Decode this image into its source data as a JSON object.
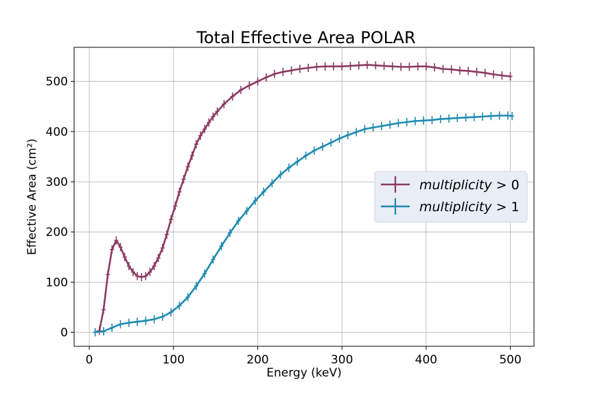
{
  "chart_data": {
    "type": "line",
    "title": "Total Effective Area POLAR",
    "xlabel": "Energy (keV)",
    "ylabel": "Effective Area (cm²)",
    "xlim": [
      -18,
      528
    ],
    "ylim": [
      -28,
      568
    ],
    "xticks": [
      0,
      100,
      200,
      300,
      400,
      500
    ],
    "yticks": [
      0,
      100,
      200,
      300,
      400,
      500
    ],
    "grid": true,
    "legend": {
      "position": "center-right"
    },
    "series": [
      {
        "name": "multiplicity > 0",
        "label_italic": "multiplicity",
        "label_rest": " > 0",
        "color": "#8b3a62",
        "x": [
          7,
          12,
          17,
          22,
          27,
          32,
          37,
          42,
          47,
          52,
          57,
          62,
          67,
          72,
          77,
          82,
          87,
          92,
          97,
          102,
          107,
          112,
          117,
          122,
          127,
          132,
          137,
          142,
          147,
          152,
          160,
          170,
          180,
          190,
          200,
          210,
          220,
          230,
          240,
          250,
          260,
          270,
          280,
          290,
          300,
          310,
          320,
          330,
          340,
          350,
          360,
          370,
          380,
          390,
          400,
          410,
          420,
          430,
          440,
          450,
          460,
          470,
          480,
          490,
          500
        ],
        "y": [
          0,
          3,
          45,
          115,
          165,
          183,
          170,
          150,
          132,
          120,
          112,
          110,
          112,
          120,
          132,
          148,
          168,
          195,
          225,
          252,
          280,
          305,
          330,
          352,
          375,
          392,
          405,
          418,
          430,
          440,
          455,
          470,
          483,
          492,
          500,
          508,
          515,
          519,
          522,
          525,
          527,
          529,
          530,
          530,
          530,
          531,
          532,
          533,
          532,
          531,
          530,
          529,
          529,
          530,
          530,
          528,
          525,
          524,
          522,
          521,
          519,
          517,
          514,
          512,
          510
        ]
      },
      {
        "name": "multiplicity > 1",
        "label_italic": "multiplicity",
        "label_rest": " > 1",
        "color": "#1f8ab0",
        "x": [
          7,
          17,
          27,
          37,
          47,
          57,
          67,
          77,
          87,
          97,
          107,
          117,
          127,
          137,
          147,
          157,
          167,
          177,
          187,
          197,
          207,
          217,
          227,
          237,
          247,
          257,
          267,
          277,
          287,
          297,
          307,
          317,
          327,
          337,
          347,
          357,
          367,
          377,
          387,
          397,
          407,
          417,
          427,
          437,
          447,
          457,
          467,
          477,
          487,
          497,
          502
        ],
        "y": [
          0,
          2,
          9,
          16,
          19,
          21,
          23,
          26,
          31,
          40,
          53,
          70,
          92,
          117,
          145,
          172,
          198,
          222,
          242,
          262,
          280,
          297,
          314,
          328,
          340,
          352,
          362,
          370,
          378,
          386,
          393,
          399,
          405,
          408,
          411,
          414,
          417,
          419,
          421,
          422,
          423,
          425,
          426,
          427,
          428,
          429,
          430,
          431,
          432,
          432,
          431
        ]
      }
    ]
  }
}
